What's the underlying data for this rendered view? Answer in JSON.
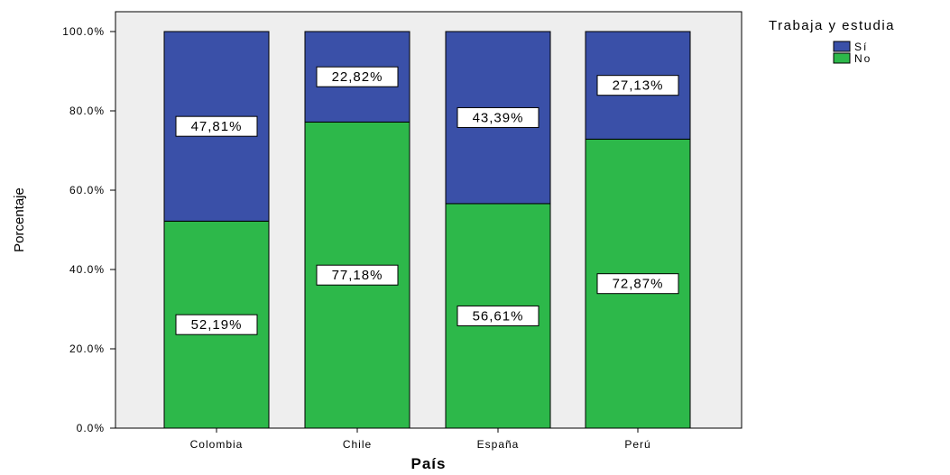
{
  "chart_data": {
    "type": "bar",
    "stacked": true,
    "categories": [
      "Colombia",
      "Chile",
      "España",
      "Perú"
    ],
    "series": [
      {
        "name": "No",
        "values": [
          52.19,
          77.18,
          56.61,
          72.87
        ],
        "labels": [
          "52,19%",
          "77,18%",
          "56,61%",
          "72,87%"
        ],
        "color": "#2db84a"
      },
      {
        "name": "Sí",
        "values": [
          47.81,
          22.82,
          43.39,
          27.13
        ],
        "labels": [
          "47,81%",
          "22,82%",
          "43,39%",
          "27,13%"
        ],
        "color": "#3a50a8"
      }
    ],
    "xlabel": "País",
    "ylabel": "Porcentaje",
    "ylim": [
      0,
      100
    ],
    "yticks": [
      0,
      20,
      40,
      60,
      80,
      100
    ],
    "ytick_labels": [
      "0.0%",
      "20.0%",
      "40.0%",
      "60.0%",
      "80.0%",
      "100.0%"
    ],
    "legend": {
      "title": "Trabaja y estudia",
      "entries": [
        {
          "label": "Sí",
          "color": "#3a50a8"
        },
        {
          "label": "No",
          "color": "#2db84a"
        }
      ],
      "position": "top-right"
    },
    "plot_background": "#eeeeee",
    "grid": false
  }
}
